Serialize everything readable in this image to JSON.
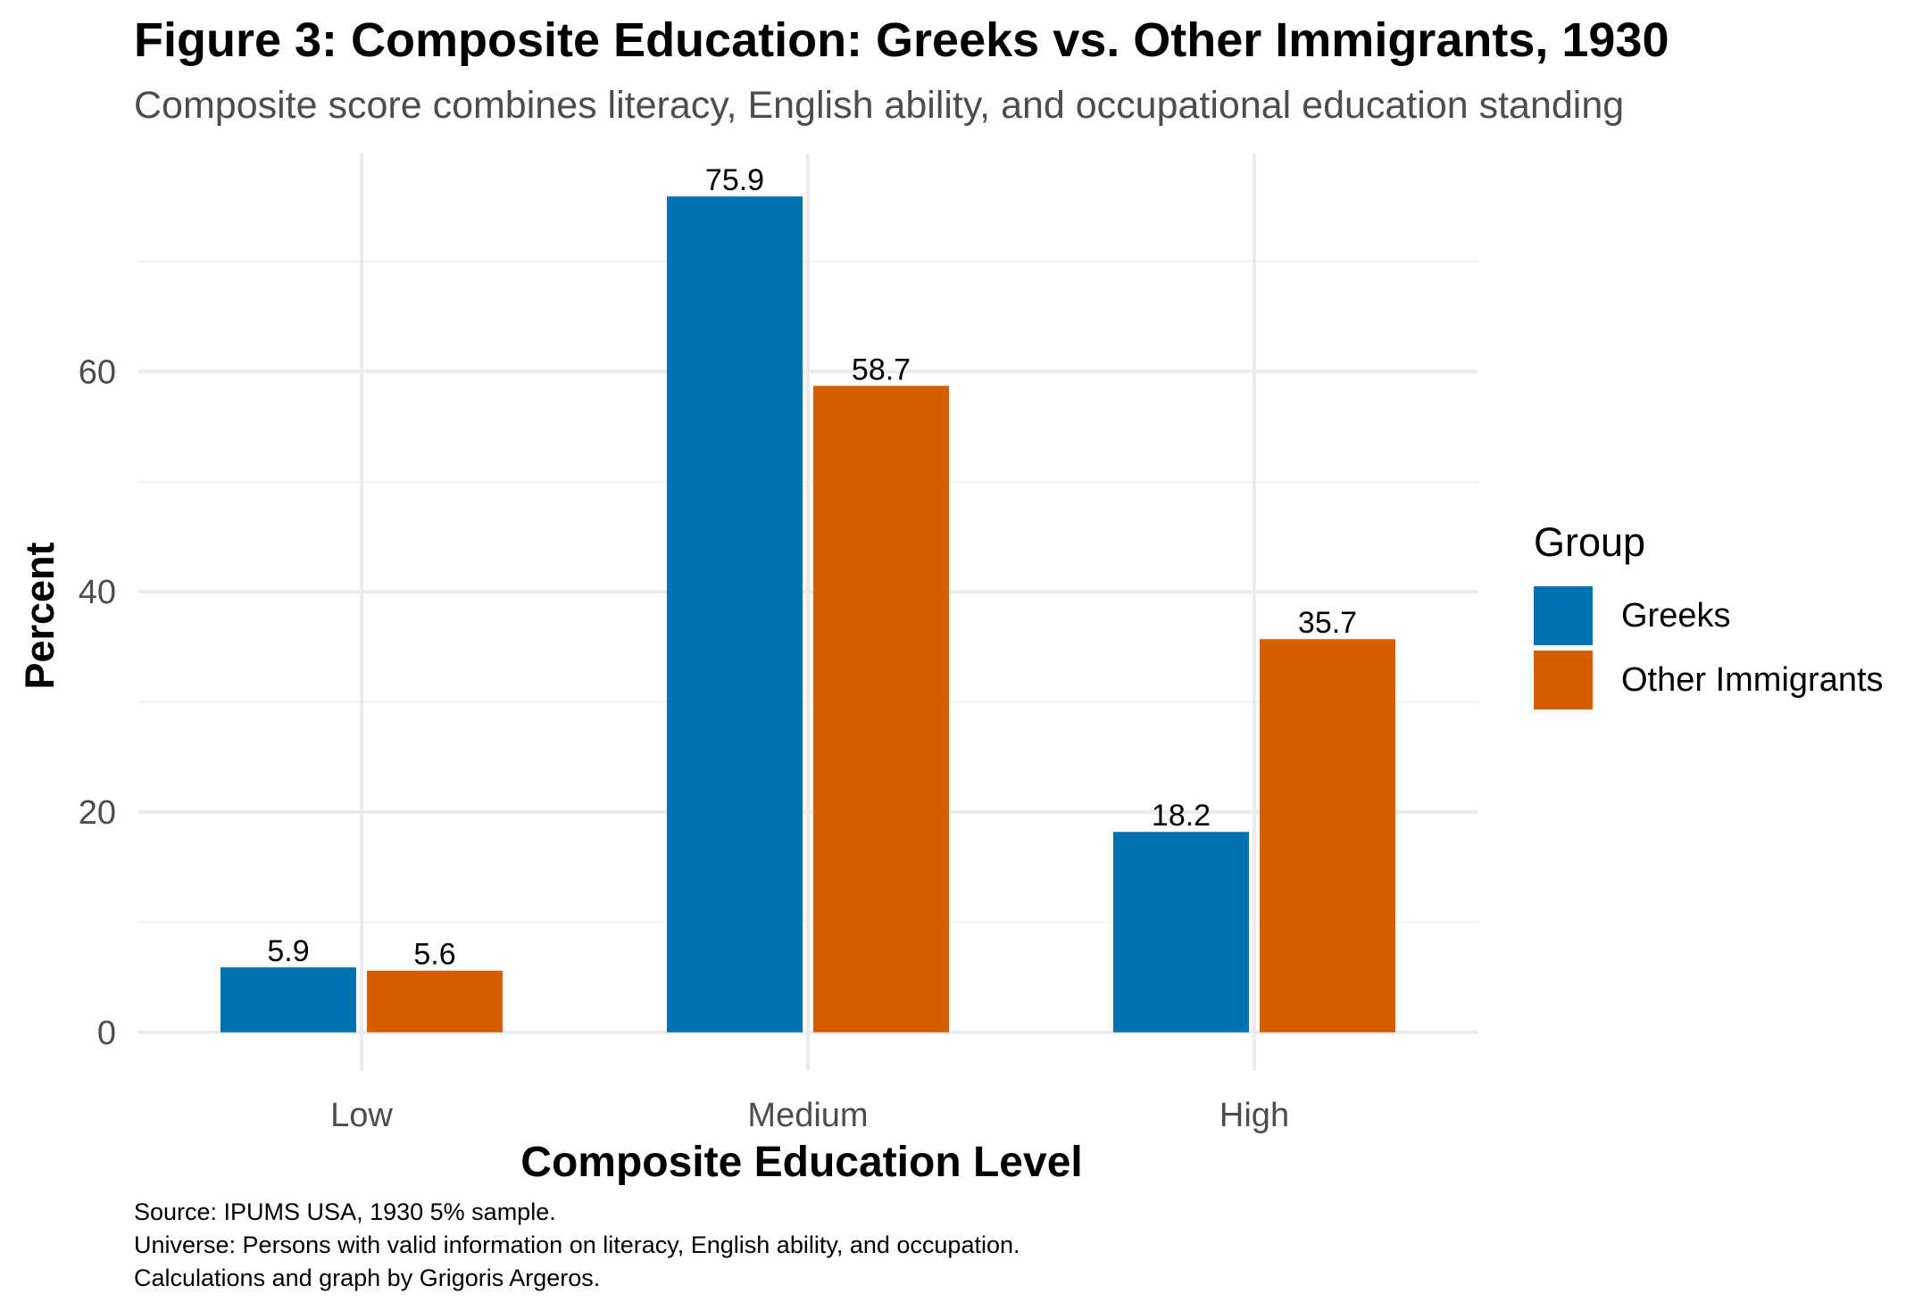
{
  "title": "Figure 3: Composite Education: Greeks vs. Other Immigrants, 1930",
  "subtitle": "Composite score combines literacy, English ability, and occupational education standing",
  "caption": {
    "line1": "Source: IPUMS USA, 1930 5% sample.",
    "line2": "Universe: Persons with valid information on literacy, English ability, and occupation.",
    "line3": "Calculations and graph by Grigoris Argeros."
  },
  "legend": {
    "title": "Group",
    "items": [
      {
        "label": "Greeks",
        "color": "#0072B2"
      },
      {
        "label": "Other Immigrants",
        "color": "#D55E00"
      }
    ]
  },
  "chart_data": {
    "type": "bar",
    "title": "Figure 3: Composite Education: Greeks vs. Other Immigrants, 1930",
    "xlabel": "Composite Education Level",
    "ylabel": "Percent",
    "categories": [
      "Low",
      "Medium",
      "High"
    ],
    "series": [
      {
        "name": "Greeks",
        "color": "#0072B2",
        "values": [
          5.9,
          75.9,
          18.2
        ],
        "labels": [
          "5.9",
          "75.9",
          "18.2"
        ]
      },
      {
        "name": "Other Immigrants",
        "color": "#D55E00",
        "values": [
          5.6,
          58.7,
          35.7
        ],
        "labels": [
          "5.6",
          "58.7",
          "35.7"
        ]
      }
    ],
    "yticks": [
      0,
      20,
      40,
      60
    ],
    "ylim": [
      -3.5,
      79.8
    ],
    "grid": true,
    "legend_position": "right"
  }
}
